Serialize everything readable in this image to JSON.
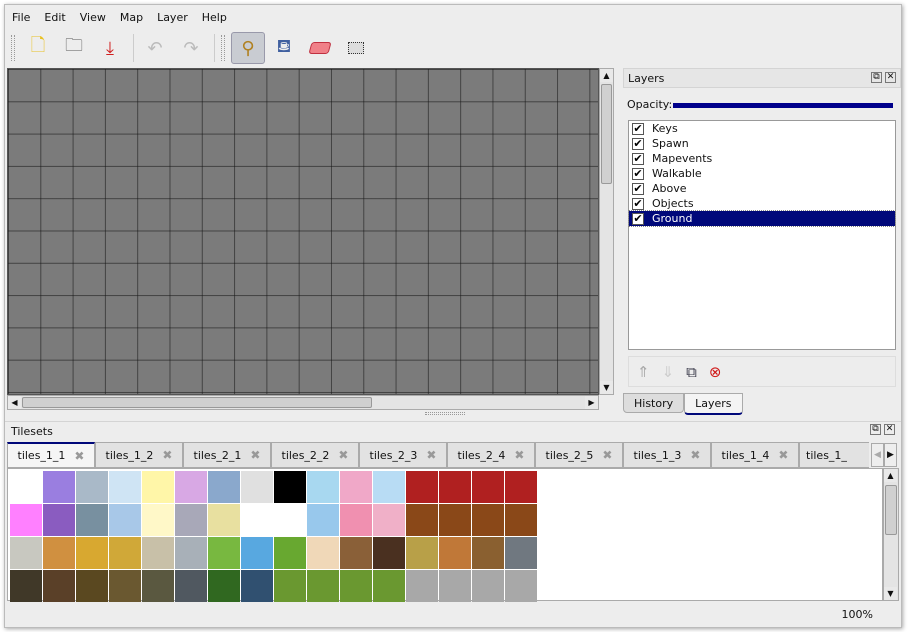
{
  "menu": [
    "File",
    "Edit",
    "View",
    "Map",
    "Layer",
    "Help"
  ],
  "toolbar": {
    "new": "new-file",
    "open": "open-folder",
    "save": "save-download",
    "undo": "undo",
    "redo": "redo",
    "stamp": "stamp-brush",
    "fill": "bucket-fill",
    "eraser": "eraser",
    "select": "rectangle-select",
    "active_tool": "stamp"
  },
  "layers_panel": {
    "title": "Layers",
    "opacity_label": "Opacity:",
    "opacity": 1.0,
    "layers": [
      {
        "name": "Keys",
        "visible": true
      },
      {
        "name": "Spawn",
        "visible": true
      },
      {
        "name": "Mapevents",
        "visible": true
      },
      {
        "name": "Walkable",
        "visible": true
      },
      {
        "name": "Above",
        "visible": true
      },
      {
        "name": "Objects",
        "visible": true
      },
      {
        "name": "Ground",
        "visible": true,
        "selected": true
      }
    ],
    "tabs": [
      "History",
      "Layers"
    ],
    "active_tab": "Layers"
  },
  "tilesets_panel": {
    "title": "Tilesets",
    "tabs": [
      "tiles_1_1",
      "tiles_1_2",
      "tiles_2_1",
      "tiles_2_2",
      "tiles_2_3",
      "tiles_2_4",
      "tiles_2_5",
      "tiles_1_3",
      "tiles_1_4",
      "tiles_1_"
    ],
    "active_tab": "tiles_1_1",
    "tile_colors": [
      [
        "#ffffff",
        "#9a7ee0",
        "#a9b9c8",
        "#cfe4f4",
        "#fff6a8",
        "#d8a8e4",
        "#8aa8cc",
        "#e0e0e0",
        "#000000",
        "#a8d8f0",
        "#f0a8c8",
        "#b8dcf4",
        "#b02020",
        "#b02020",
        "#b02020",
        "#b02020"
      ],
      [
        "#ff80ff",
        "#8a5cc0",
        "#7890a0",
        "#a8c8e8",
        "#fff8c8",
        "#a8a8b8",
        "#e8e0a0",
        "#ffffff",
        "#ffffff",
        "#98c8ec",
        "#f090b0",
        "#f0b0c8",
        "#8a4818",
        "#8a4818",
        "#8a4818",
        "#8a4818"
      ],
      [
        "#c8c8c0",
        "#d09040",
        "#d8a830",
        "#d0a838",
        "#c8c0a8",
        "#a8b0b8",
        "#78b840",
        "#58a8e0",
        "#68a830",
        "#f0d8b8",
        "#8a6038",
        "#4a3020",
        "#b8a048",
        "#c07838",
        "#8a6030",
        "#707880"
      ],
      [
        "#403828",
        "#5a4028",
        "#5a4820",
        "#6a5830",
        "#5a5840",
        "#505860",
        "#306820",
        "#305070",
        "#6a9830",
        "#6a9830",
        "#6a9830",
        "#6a9830",
        "#a8a8a8",
        "#a8a8a8",
        "#a8a8a8",
        "#a8a8a8"
      ]
    ]
  },
  "status": {
    "zoom": "100%"
  }
}
